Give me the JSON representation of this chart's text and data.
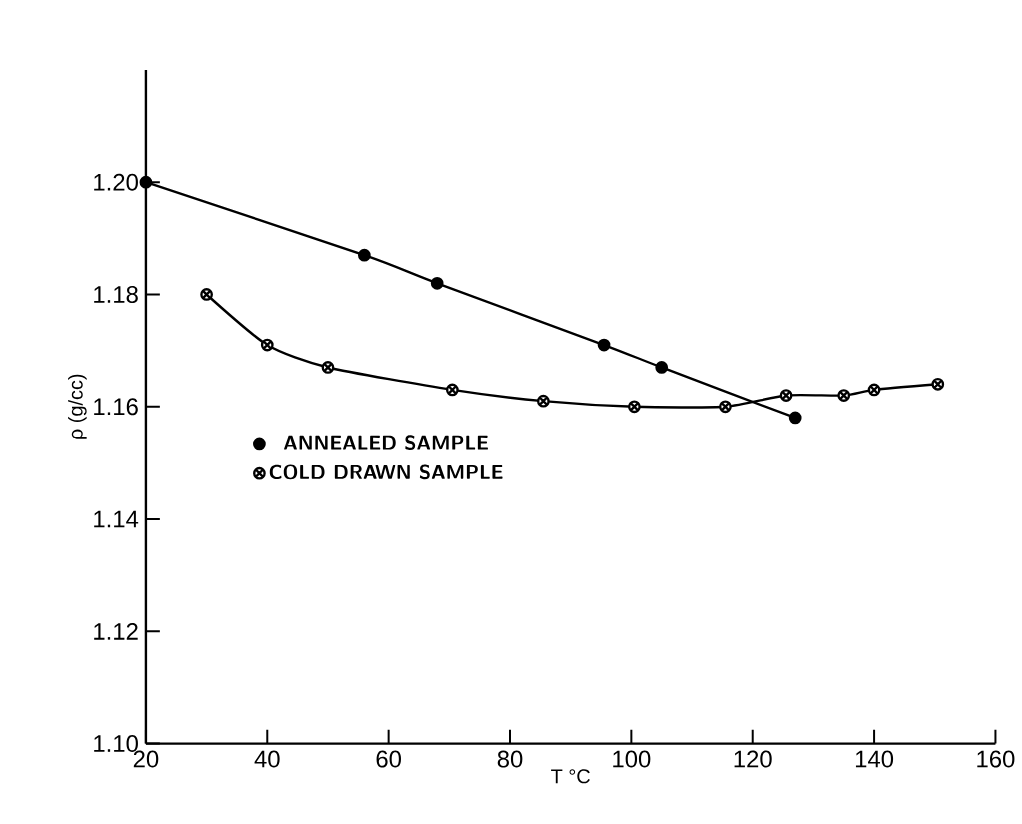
{
  "chart_data": {
    "type": "line",
    "xlabel": "T °C",
    "ylabel": "ρ (g/cc)",
    "xlim": [
      20,
      160
    ],
    "ylim": [
      1.1,
      1.22
    ],
    "xticks": [
      20,
      40,
      60,
      80,
      100,
      120,
      140,
      160
    ],
    "yticks": [
      {
        "value": 1.1,
        "label": "1.10"
      },
      {
        "value": 1.12,
        "label": "1.12"
      },
      {
        "value": 1.14,
        "label": "1.14"
      },
      {
        "value": 1.16,
        "label": "1.16"
      },
      {
        "value": 1.18,
        "label": "1.18"
      },
      {
        "value": 1.2,
        "label": "1.20"
      }
    ],
    "grid": false,
    "legend": "left",
    "series": [
      {
        "name": "ANNEALED SAMPLE",
        "color": "#000000",
        "marker": "circle",
        "x": [
          20,
          56,
          68,
          95.5,
          105,
          127
        ],
        "values": [
          1.2,
          1.187,
          1.182,
          1.171,
          1.167,
          1.158
        ]
      },
      {
        "name": "COLD DRAWN SAMPLE",
        "color": "#000000",
        "marker": "cross",
        "x": [
          30,
          40,
          50,
          70.5,
          85.5,
          100.5,
          115.5,
          125.5,
          135,
          140,
          150.5
        ],
        "values": [
          1.18,
          1.171,
          1.167,
          1.163,
          1.161,
          1.16,
          1.16,
          1.162,
          1.162,
          1.163,
          1.164
        ]
      }
    ]
  }
}
